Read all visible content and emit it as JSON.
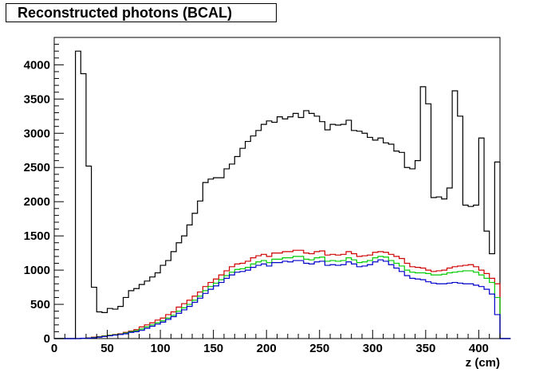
{
  "chart_data": {
    "type": "line",
    "title": "Reconstructed photons (BCAL)",
    "xlabel": "z (cm)",
    "ylabel": "",
    "xlim": [
      0,
      420
    ],
    "ylim": [
      0,
      4400
    ],
    "x_ticks": [
      0,
      50,
      100,
      150,
      200,
      250,
      300,
      350,
      400
    ],
    "y_ticks": [
      0,
      500,
      1000,
      1500,
      2000,
      2500,
      3000,
      3500,
      4000
    ],
    "grid": false,
    "bin_width": 5,
    "x_start": 0,
    "series": [
      {
        "color": "#000000",
        "values": [
          0,
          0,
          0,
          0,
          4200,
          3870,
          2520,
          750,
          390,
          380,
          440,
          430,
          470,
          600,
          700,
          730,
          790,
          840,
          900,
          960,
          1070,
          1140,
          1270,
          1400,
          1500,
          1660,
          1830,
          2010,
          2280,
          2330,
          2350,
          2350,
          2480,
          2550,
          2660,
          2780,
          2880,
          2960,
          3040,
          3130,
          3180,
          3160,
          3240,
          3210,
          3240,
          3290,
          3230,
          3330,
          3290,
          3250,
          3170,
          3050,
          3130,
          3120,
          3130,
          3190,
          3040,
          3030,
          3000,
          2940,
          2900,
          2930,
          2860,
          2840,
          2740,
          2720,
          2500,
          2480,
          2600,
          3680,
          3430,
          2060,
          2070,
          2040,
          2200,
          3620,
          3250,
          1950,
          1930,
          1950,
          2930,
          1570,
          1240,
          2580,
          0,
          0
        ]
      },
      {
        "color": "#d00000",
        "values": [
          0,
          0,
          0,
          0,
          0,
          5,
          10,
          20,
          30,
          40,
          50,
          60,
          70,
          90,
          110,
          130,
          170,
          200,
          230,
          270,
          300,
          350,
          390,
          460,
          510,
          560,
          620,
          680,
          760,
          820,
          870,
          930,
          990,
          1050,
          1090,
          1100,
          1130,
          1180,
          1210,
          1230,
          1200,
          1250,
          1250,
          1270,
          1270,
          1290,
          1290,
          1250,
          1240,
          1270,
          1280,
          1220,
          1230,
          1220,
          1230,
          1270,
          1240,
          1200,
          1210,
          1220,
          1260,
          1270,
          1260,
          1230,
          1200,
          1170,
          1100,
          1050,
          1040,
          1030,
          1000,
          980,
          990,
          1000,
          1030,
          1050,
          1060,
          1070,
          1080,
          1050,
          1000,
          950,
          880,
          800,
          0,
          0
        ]
      },
      {
        "color": "#00cc00",
        "values": [
          0,
          0,
          0,
          0,
          0,
          5,
          8,
          15,
          25,
          35,
          45,
          55,
          65,
          80,
          100,
          115,
          140,
          170,
          200,
          230,
          260,
          300,
          340,
          400,
          450,
          500,
          560,
          620,
          700,
          760,
          810,
          860,
          920,
          970,
          1010,
          1020,
          1040,
          1090,
          1120,
          1140,
          1110,
          1160,
          1160,
          1180,
          1180,
          1200,
          1200,
          1160,
          1150,
          1180,
          1190,
          1130,
          1140,
          1130,
          1140,
          1180,
          1150,
          1110,
          1120,
          1140,
          1180,
          1200,
          1190,
          1140,
          1100,
          1060,
          1000,
          970,
          960,
          960,
          950,
          930,
          930,
          940,
          960,
          970,
          980,
          990,
          990,
          970,
          930,
          880,
          820,
          600,
          0,
          0
        ]
      },
      {
        "color": "#0000cc",
        "values": [
          0,
          0,
          0,
          0,
          0,
          4,
          6,
          10,
          20,
          30,
          40,
          50,
          60,
          70,
          90,
          100,
          120,
          150,
          180,
          210,
          240,
          280,
          320,
          370,
          420,
          470,
          530,
          590,
          660,
          720,
          770,
          820,
          880,
          930,
          970,
          980,
          1000,
          1040,
          1070,
          1090,
          1060,
          1110,
          1110,
          1130,
          1120,
          1140,
          1140,
          1100,
          1090,
          1120,
          1130,
          1070,
          1080,
          1070,
          1080,
          1120,
          1090,
          1050,
          1060,
          1080,
          1120,
          1150,
          1130,
          1080,
          1030,
          980,
          920,
          880,
          870,
          860,
          830,
          810,
          800,
          800,
          810,
          820,
          810,
          800,
          800,
          780,
          760,
          720,
          650,
          350,
          0,
          0
        ]
      }
    ]
  }
}
